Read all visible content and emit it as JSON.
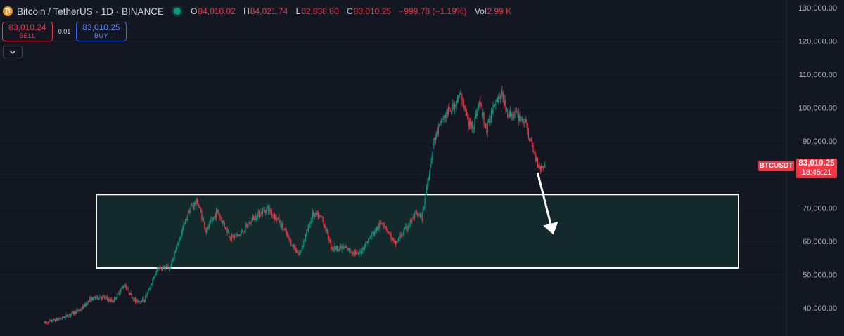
{
  "header": {
    "coin_icon": "₿",
    "symbol_title": "Bitcoin / TetherUS · 1D · BINANCE",
    "status_dot_color": "#089981",
    "ohlc": {
      "open_label": "O",
      "open": "84,010.02",
      "high_label": "H",
      "high": "84,021.74",
      "low_label": "L",
      "low": "82,838.80",
      "close_label": "C",
      "close": "83,010.25",
      "change": "−999.78 (−1.19%)",
      "vol_label": "Vol",
      "vol": "2.99 K"
    }
  },
  "trade": {
    "sell_price": "83,010.24",
    "sell_label": "SELL",
    "spread": "0.01",
    "buy_price": "83,010.25",
    "buy_label": "BUY"
  },
  "collapse_icon": "chevron-down-icon",
  "price_badge": {
    "symbol": "BTCUSDT",
    "price": "83,010.25",
    "countdown": "18:45:21"
  },
  "colors": {
    "up": "#089981",
    "down": "#f23645",
    "background": "#131722",
    "zone_fill": "#13292b",
    "zone_border": "#ffffff",
    "arrow": "#ffffff"
  },
  "chart_data": {
    "type": "candlestick",
    "y_axis_ticks": [
      40000,
      50000,
      60000,
      70000,
      80000,
      90000,
      100000,
      110000,
      120000,
      130000
    ],
    "y_tick_labels": [
      "40,000.00",
      "50,000.00",
      "60,000.00",
      "70,000.00",
      "80,000.00",
      "90,000.00",
      "100,000.00",
      "110,000.00",
      "120,000.00",
      "130,000.00"
    ],
    "ylim": [
      32700,
      132600
    ],
    "bar_count": 510,
    "last_price": 83010.25,
    "price_path": [
      [
        0,
        35500
      ],
      [
        20,
        37000
      ],
      [
        40,
        39500
      ],
      [
        50,
        42500
      ],
      [
        62,
        43500
      ],
      [
        75,
        42000
      ],
      [
        88,
        47000
      ],
      [
        100,
        42000
      ],
      [
        110,
        42500
      ],
      [
        125,
        52000
      ],
      [
        138,
        52000
      ],
      [
        150,
        62000
      ],
      [
        160,
        70000
      ],
      [
        168,
        72000
      ],
      [
        178,
        63000
      ],
      [
        190,
        69000
      ],
      [
        205,
        61000
      ],
      [
        215,
        62000
      ],
      [
        230,
        67000
      ],
      [
        245,
        70000
      ],
      [
        258,
        66000
      ],
      [
        270,
        60000
      ],
      [
        280,
        56000
      ],
      [
        295,
        68000
      ],
      [
        305,
        67000
      ],
      [
        316,
        58000
      ],
      [
        330,
        58000
      ],
      [
        345,
        56000
      ],
      [
        360,
        62000
      ],
      [
        372,
        66000
      ],
      [
        385,
        59000
      ],
      [
        398,
        64000
      ],
      [
        408,
        68000
      ],
      [
        415,
        67000
      ],
      [
        420,
        76000
      ],
      [
        428,
        90000
      ],
      [
        438,
        97000
      ],
      [
        448,
        100000
      ],
      [
        458,
        104000
      ],
      [
        466,
        95000
      ],
      [
        472,
        95000
      ],
      [
        478,
        102000
      ],
      [
        486,
        93000
      ],
      [
        494,
        102000
      ],
      [
        502,
        104000
      ],
      [
        510,
        98000
      ],
      [
        518,
        98000
      ],
      [
        528,
        96000
      ],
      [
        536,
        88000
      ],
      [
        540,
        85000
      ],
      [
        545,
        82000
      ],
      [
        550,
        83010
      ]
    ],
    "zone": {
      "x_start": 48,
      "x_end": 510,
      "y_low": 52000,
      "y_high": 74000
    },
    "arrow": {
      "from_bar": 542,
      "from_price": 80500,
      "to_bar": 550,
      "to_price": 62000
    }
  }
}
